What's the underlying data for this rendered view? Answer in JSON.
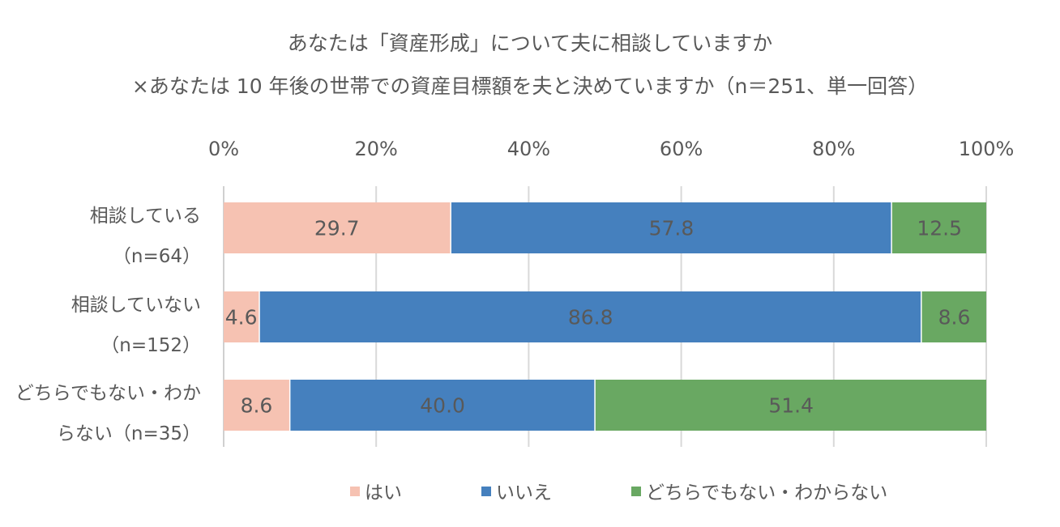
{
  "chart_data": {
    "type": "bar",
    "orientation": "horizontal",
    "stacked": true,
    "title_lines": [
      "あなたは「資産形成」について夫に相談していますか",
      "×あなたは 10 年後の世帯での資産目標額を夫と決めていますか（n＝251、単一回答）"
    ],
    "categories": [
      [
        "相談している",
        "（n=64）"
      ],
      [
        "相談していない",
        "（n=152）"
      ],
      [
        "どちらでもない・わか",
        "らない（n=35）"
      ]
    ],
    "series": [
      {
        "name": "はい",
        "color": "#F6C2B2",
        "values": [
          29.7,
          4.6,
          8.6
        ]
      },
      {
        "name": "いいえ",
        "color": "#4580BE",
        "values": [
          57.8,
          86.8,
          40.0
        ]
      },
      {
        "name": "どちらでもない・わからない",
        "color": "#69A862",
        "values": [
          12.5,
          8.6,
          51.4
        ]
      }
    ],
    "x_ticks": [
      "0%",
      "20%",
      "40%",
      "60%",
      "80%",
      "100%"
    ],
    "xlim": [
      0,
      100
    ],
    "x_axis_position": "top",
    "grid": true,
    "legend": "bottom"
  }
}
